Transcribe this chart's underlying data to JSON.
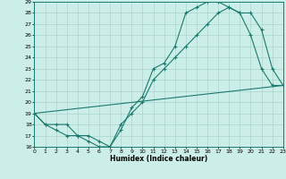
{
  "xlabel": "Humidex (Indice chaleur)",
  "bg_color": "#cceee8",
  "line_color": "#1a7a6e",
  "grid_color": "#aad4cc",
  "xmin": 0,
  "xmax": 23,
  "ymin": 16,
  "ymax": 29,
  "yticks": [
    16,
    17,
    18,
    19,
    20,
    21,
    22,
    23,
    24,
    25,
    26,
    27,
    28,
    29
  ],
  "xticks": [
    0,
    1,
    2,
    3,
    4,
    5,
    6,
    7,
    8,
    9,
    10,
    11,
    12,
    13,
    14,
    15,
    16,
    17,
    18,
    19,
    20,
    21,
    22,
    23
  ],
  "line1_x": [
    0,
    1,
    2,
    3,
    4,
    5,
    6,
    7,
    8,
    9,
    10,
    11,
    12,
    13,
    14,
    15,
    16,
    17,
    18,
    19,
    20,
    21,
    22,
    23
  ],
  "line1_y": [
    19,
    18,
    17.5,
    17,
    17,
    16.5,
    16,
    16,
    17.5,
    19.5,
    20.5,
    23,
    23.5,
    25,
    28,
    28.5,
    29,
    29,
    28.5,
    28,
    28,
    26.5,
    23,
    21.5
  ],
  "line2_x": [
    0,
    1,
    2,
    3,
    4,
    5,
    6,
    7,
    8,
    9,
    10,
    11,
    12,
    13,
    14,
    15,
    16,
    17,
    18,
    19,
    20,
    21,
    22,
    23
  ],
  "line2_y": [
    19,
    18,
    18,
    18,
    17,
    17,
    16.5,
    16,
    18,
    19,
    20,
    22,
    23,
    24,
    25,
    26,
    27,
    28,
    28.5,
    28,
    26,
    23,
    21.5,
    21.5
  ],
  "line3_x": [
    0,
    23
  ],
  "line3_y": [
    19,
    21.5
  ]
}
